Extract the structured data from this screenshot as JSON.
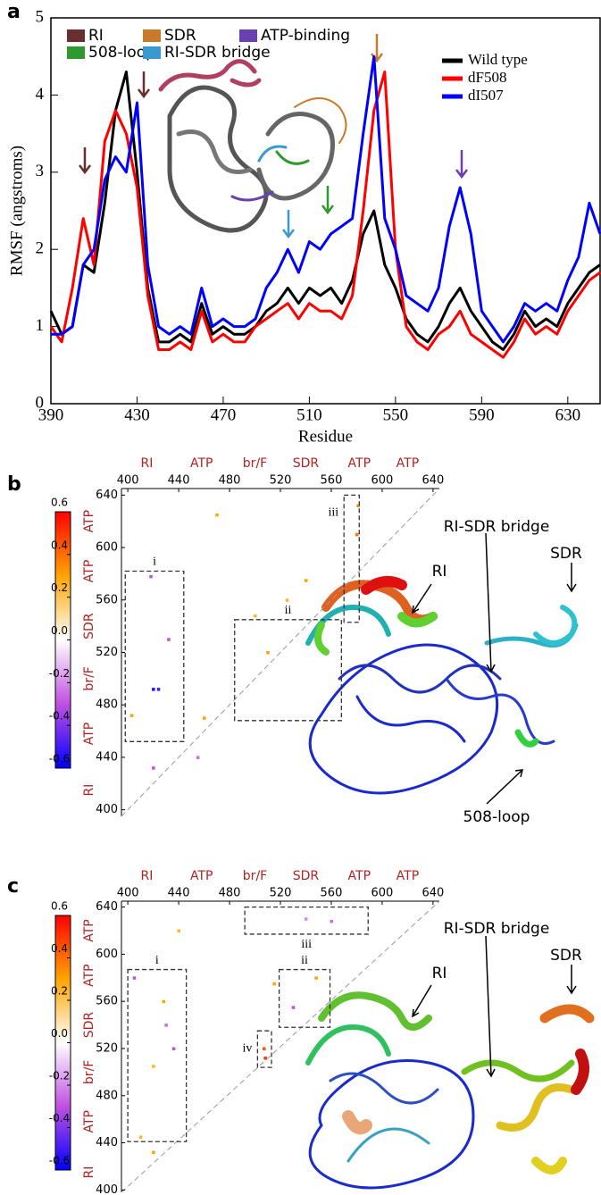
{
  "chart_data": [
    {
      "type": "line",
      "panel": "a",
      "xlabel": "Residue",
      "ylabel": "RMSF (angstroms)",
      "x": [
        390,
        395,
        400,
        405,
        410,
        415,
        420,
        425,
        430,
        435,
        440,
        445,
        450,
        455,
        460,
        465,
        470,
        475,
        480,
        485,
        490,
        495,
        500,
        505,
        510,
        515,
        520,
        525,
        530,
        535,
        540,
        545,
        550,
        555,
        560,
        565,
        570,
        575,
        580,
        585,
        590,
        595,
        600,
        605,
        610,
        615,
        620,
        625,
        630,
        635,
        640,
        645
      ],
      "series": [
        {
          "name": "Wild type",
          "color": "#000000",
          "values": [
            1.2,
            0.9,
            1.0,
            1.8,
            1.7,
            2.6,
            3.8,
            4.3,
            3.0,
            1.5,
            0.8,
            0.8,
            0.9,
            0.8,
            1.3,
            0.9,
            1.0,
            0.9,
            0.9,
            1.0,
            1.2,
            1.3,
            1.5,
            1.3,
            1.5,
            1.4,
            1.5,
            1.3,
            1.6,
            2.2,
            2.5,
            1.8,
            1.5,
            1.1,
            0.9,
            0.8,
            1.0,
            1.3,
            1.5,
            1.2,
            1.0,
            0.8,
            0.7,
            0.9,
            1.2,
            1.0,
            1.1,
            1.0,
            1.3,
            1.5,
            1.7,
            1.8
          ]
        },
        {
          "name": "dF508",
          "color": "#ff0000",
          "values": [
            1.0,
            0.8,
            1.5,
            2.4,
            1.8,
            3.4,
            3.8,
            3.5,
            2.8,
            1.4,
            0.7,
            0.7,
            0.8,
            0.7,
            1.2,
            0.8,
            0.9,
            0.8,
            0.8,
            1.0,
            1.1,
            1.2,
            1.3,
            1.1,
            1.3,
            1.2,
            1.2,
            1.1,
            1.4,
            2.5,
            3.8,
            4.3,
            2.0,
            1.0,
            0.8,
            0.7,
            0.9,
            1.0,
            1.2,
            0.9,
            0.8,
            0.7,
            0.6,
            0.8,
            1.1,
            0.9,
            1.0,
            0.9,
            1.2,
            1.4,
            1.6,
            1.7
          ]
        },
        {
          "name": "dI507",
          "color": "#0000ff",
          "values": [
            0.9,
            0.9,
            1.0,
            1.8,
            2.0,
            2.9,
            3.2,
            3.0,
            3.9,
            1.8,
            1.0,
            0.9,
            1.0,
            0.9,
            1.5,
            1.0,
            1.1,
            1.0,
            1.0,
            1.1,
            1.5,
            1.7,
            2.0,
            1.7,
            2.1,
            2.0,
            2.2,
            2.3,
            2.4,
            3.5,
            4.5,
            2.4,
            2.0,
            1.4,
            1.3,
            1.2,
            1.5,
            2.3,
            2.8,
            2.2,
            1.2,
            1.0,
            0.8,
            1.0,
            1.3,
            1.2,
            1.3,
            1.2,
            1.6,
            1.9,
            2.6,
            2.2
          ]
        }
      ],
      "region_legend": [
        {
          "name": "RI",
          "color": "#6b2e2e"
        },
        {
          "name": "SDR",
          "color": "#c87a2a"
        },
        {
          "name": "ATP-binding",
          "color": "#6a3fb0"
        },
        {
          "name": "508-loop",
          "color": "#2e9a2e"
        },
        {
          "name": "RI-SDR bridge",
          "color": "#3a9ad0"
        }
      ],
      "xlim": [
        390,
        645
      ],
      "ylim": [
        0,
        5
      ],
      "xticks": [
        390,
        430,
        470,
        510,
        550,
        590,
        630
      ],
      "yticks": [
        0,
        1,
        2,
        3,
        4,
        5
      ]
    },
    {
      "type": "heatmap",
      "panel": "b",
      "xlim": [
        395,
        645
      ],
      "ylim": [
        395,
        645
      ],
      "xticks": [
        400,
        440,
        480,
        520,
        560,
        600,
        640
      ],
      "yticks": [
        400,
        440,
        480,
        520,
        560,
        600,
        640
      ],
      "regions": [
        {
          "label": "RI",
          "value": 415
        },
        {
          "label": "ATP",
          "value": 458
        },
        {
          "label": "br/F",
          "value": 500
        },
        {
          "label": "SDR",
          "value": 540
        },
        {
          "label": "ATP",
          "value": 582
        },
        {
          "label": "ATP",
          "value": 620
        }
      ],
      "clim": [
        -0.6,
        0.6
      ],
      "colorscale": [
        "#0000ff",
        "#c050e0",
        "#ffffff",
        "#ffa500",
        "#ff0000"
      ],
      "colorbar_ticks": [
        0.6,
        0.4,
        0.2,
        {
          "value": 0,
          "label": "0.0"
        },
        -0.2,
        -0.4,
        -0.6
      ],
      "points": [
        {
          "x": 420,
          "y": 492,
          "value": -0.55
        },
        {
          "x": 424,
          "y": 492,
          "value": -0.5
        },
        {
          "x": 418,
          "y": 578,
          "value": -0.3
        },
        {
          "x": 470,
          "y": 625,
          "value": 0.3
        },
        {
          "x": 580,
          "y": 610,
          "value": 0.4
        },
        {
          "x": 581,
          "y": 632,
          "value": 0.35
        },
        {
          "x": 510,
          "y": 520,
          "value": 0.3
        },
        {
          "x": 525,
          "y": 560,
          "value": 0.25
        },
        {
          "x": 432,
          "y": 530,
          "value": -0.3
        },
        {
          "x": 403,
          "y": 472,
          "value": 0.3
        },
        {
          "x": 420,
          "y": 432,
          "value": -0.3
        },
        {
          "x": 455,
          "y": 440,
          "value": -0.25
        },
        {
          "x": 540,
          "y": 575,
          "value": 0.3
        },
        {
          "x": 500,
          "y": 548,
          "value": 0.25
        },
        {
          "x": 460,
          "y": 470,
          "value": 0.3
        }
      ],
      "boxes": [
        {
          "label": "i",
          "x": [
            398,
            444
          ],
          "y": [
            452,
            582
          ]
        },
        {
          "label": "ii",
          "x": [
            484,
            568
          ],
          "y": [
            468,
            545
          ]
        },
        {
          "label": "iii",
          "x": [
            570,
            582
          ],
          "y": [
            543,
            640
          ]
        }
      ],
      "annotations": [
        "RI-SDR bridge",
        "RI",
        "SDR",
        "508-loop"
      ]
    },
    {
      "type": "heatmap",
      "panel": "c",
      "xlim": [
        395,
        645
      ],
      "ylim": [
        398,
        645
      ],
      "xticks": [
        400,
        440,
        480,
        520,
        560,
        600,
        640
      ],
      "yticks": [
        400,
        440,
        480,
        520,
        560,
        600,
        640
      ],
      "regions": [
        {
          "label": "RI",
          "value": 415
        },
        {
          "label": "ATP",
          "value": 458
        },
        {
          "label": "br/F",
          "value": 500
        },
        {
          "label": "SDR",
          "value": 540
        },
        {
          "label": "ATP",
          "value": 582
        },
        {
          "label": "ATP",
          "value": 620
        }
      ],
      "clim": [
        -0.6,
        0.6
      ],
      "colorscale": [
        "#0000ff",
        "#c050e0",
        "#ffffff",
        "#ffa500",
        "#ff0000"
      ],
      "colorbar_ticks": [
        0.6,
        0.4,
        0.2,
        {
          "value": 0,
          "label": "0.0"
        },
        -0.2,
        -0.4,
        -0.6
      ],
      "points": [
        {
          "x": 405,
          "y": 580,
          "value": -0.3
        },
        {
          "x": 428,
          "y": 560,
          "value": 0.3
        },
        {
          "x": 430,
          "y": 540,
          "value": -0.25
        },
        {
          "x": 436,
          "y": 520,
          "value": -0.3
        },
        {
          "x": 420,
          "y": 505,
          "value": 0.25
        },
        {
          "x": 507,
          "y": 520,
          "value": 0.45
        },
        {
          "x": 508,
          "y": 512,
          "value": 0.5
        },
        {
          "x": 530,
          "y": 555,
          "value": -0.3
        },
        {
          "x": 548,
          "y": 580,
          "value": 0.3
        },
        {
          "x": 515,
          "y": 575,
          "value": 0.3
        },
        {
          "x": 540,
          "y": 630,
          "value": -0.2
        },
        {
          "x": 560,
          "y": 628,
          "value": -0.25
        },
        {
          "x": 420,
          "y": 432,
          "value": 0.3
        },
        {
          "x": 410,
          "y": 445,
          "value": 0.25
        },
        {
          "x": 440,
          "y": 620,
          "value": 0.25
        }
      ],
      "boxes": [
        {
          "label": "i",
          "x": [
            400,
            446
          ],
          "y": [
            441,
            587
          ]
        },
        {
          "label": "ii",
          "x": [
            519,
            559
          ],
          "y": [
            538,
            587
          ]
        },
        {
          "label": "iii",
          "x": [
            492,
            589
          ],
          "y": [
            617,
            640
          ]
        },
        {
          "label": "iv",
          "x": [
            502,
            513
          ],
          "y": [
            504,
            535
          ]
        }
      ],
      "annotations": [
        "RI-SDR bridge",
        "RI",
        "SDR"
      ]
    }
  ]
}
